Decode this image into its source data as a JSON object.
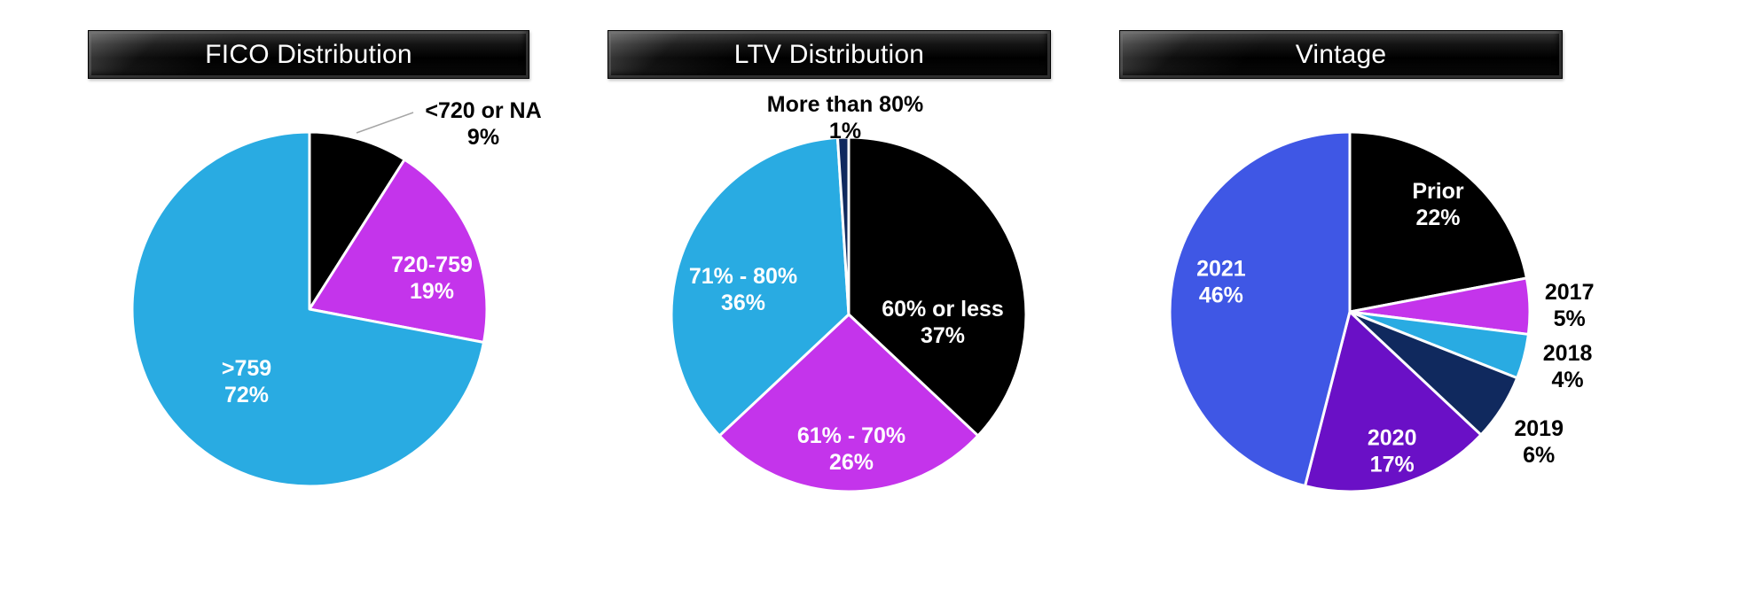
{
  "page": {
    "background_color": "#FFFFFF"
  },
  "chart_data": [
    {
      "type": "pie",
      "title": "FICO Distribution",
      "direction": "clockwise",
      "start_angle_deg": 0,
      "value_suffix": "%",
      "legend": "none",
      "slices": [
        {
          "label": "<720 or NA",
          "value": 9,
          "color": "#000000",
          "label_color": "#000000",
          "placement": "outside",
          "leader_line": true
        },
        {
          "label": "720-759",
          "value": 19,
          "color": "#C434EB",
          "label_color": "#FFFFFF",
          "placement": "inside"
        },
        {
          "label": ">759",
          "value": 72,
          "color": "#29ABE2",
          "label_color": "#FFFFFF",
          "placement": "inside"
        }
      ]
    },
    {
      "type": "pie",
      "title": "LTV Distribution",
      "direction": "clockwise",
      "start_angle_deg": 0,
      "value_suffix": "%",
      "legend": "none",
      "slices": [
        {
          "label": "60% or less",
          "value": 37,
          "color": "#000000",
          "label_color": "#FFFFFF",
          "placement": "inside"
        },
        {
          "label": "61% - 70%",
          "value": 26,
          "color": "#C434EB",
          "label_color": "#FFFFFF",
          "placement": "inside"
        },
        {
          "label": "71% - 80%",
          "value": 36,
          "color": "#29ABE2",
          "label_color": "#FFFFFF",
          "placement": "inside"
        },
        {
          "label": "More than 80%",
          "value": 1,
          "color": "#10295E",
          "label_color": "#000000",
          "placement": "outside"
        }
      ]
    },
    {
      "type": "pie",
      "title": "Vintage",
      "direction": "clockwise",
      "start_angle_deg": 0,
      "value_suffix": "%",
      "legend": "none",
      "slices": [
        {
          "label": "Prior",
          "value": 22,
          "color": "#000000",
          "label_color": "#FFFFFF",
          "placement": "inside"
        },
        {
          "label": "2017",
          "value": 5,
          "color": "#C434EB",
          "label_color": "#000000",
          "placement": "outside"
        },
        {
          "label": "2018",
          "value": 4,
          "color": "#29ABE2",
          "label_color": "#000000",
          "placement": "outside"
        },
        {
          "label": "2019",
          "value": 6,
          "color": "#10295E",
          "label_color": "#000000",
          "placement": "outside"
        },
        {
          "label": "2020",
          "value": 17,
          "color": "#6A10C6",
          "label_color": "#FFFFFF",
          "placement": "inside"
        },
        {
          "label": "2021",
          "value": 46,
          "color": "#3F57E5",
          "label_color": "#FFFFFF",
          "placement": "inside"
        }
      ]
    }
  ]
}
